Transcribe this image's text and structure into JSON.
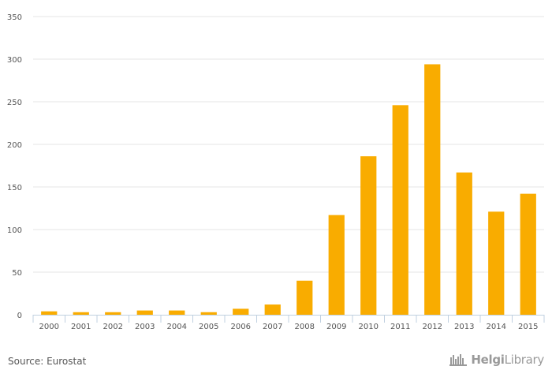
{
  "chart_data": {
    "type": "bar",
    "categories": [
      "2000",
      "2001",
      "2002",
      "2003",
      "2004",
      "2005",
      "2006",
      "2007",
      "2008",
      "2009",
      "2010",
      "2011",
      "2012",
      "2013",
      "2014",
      "2015"
    ],
    "values": [
      4,
      3,
      3,
      5,
      5,
      3,
      7,
      12,
      40,
      117,
      186,
      246,
      294,
      167,
      121,
      142
    ],
    "ylim": [
      0,
      350
    ],
    "yticks": [
      0,
      50,
      100,
      150,
      200,
      250,
      300,
      350
    ],
    "grid": true,
    "legend": "none",
    "bar_color": "#f9ac00"
  },
  "footer": {
    "source": "Source: Eurostat",
    "brand_part1": "Helgi",
    "brand_part2": "Library",
    "brand_icon": "helgi-library-logo-icon"
  }
}
